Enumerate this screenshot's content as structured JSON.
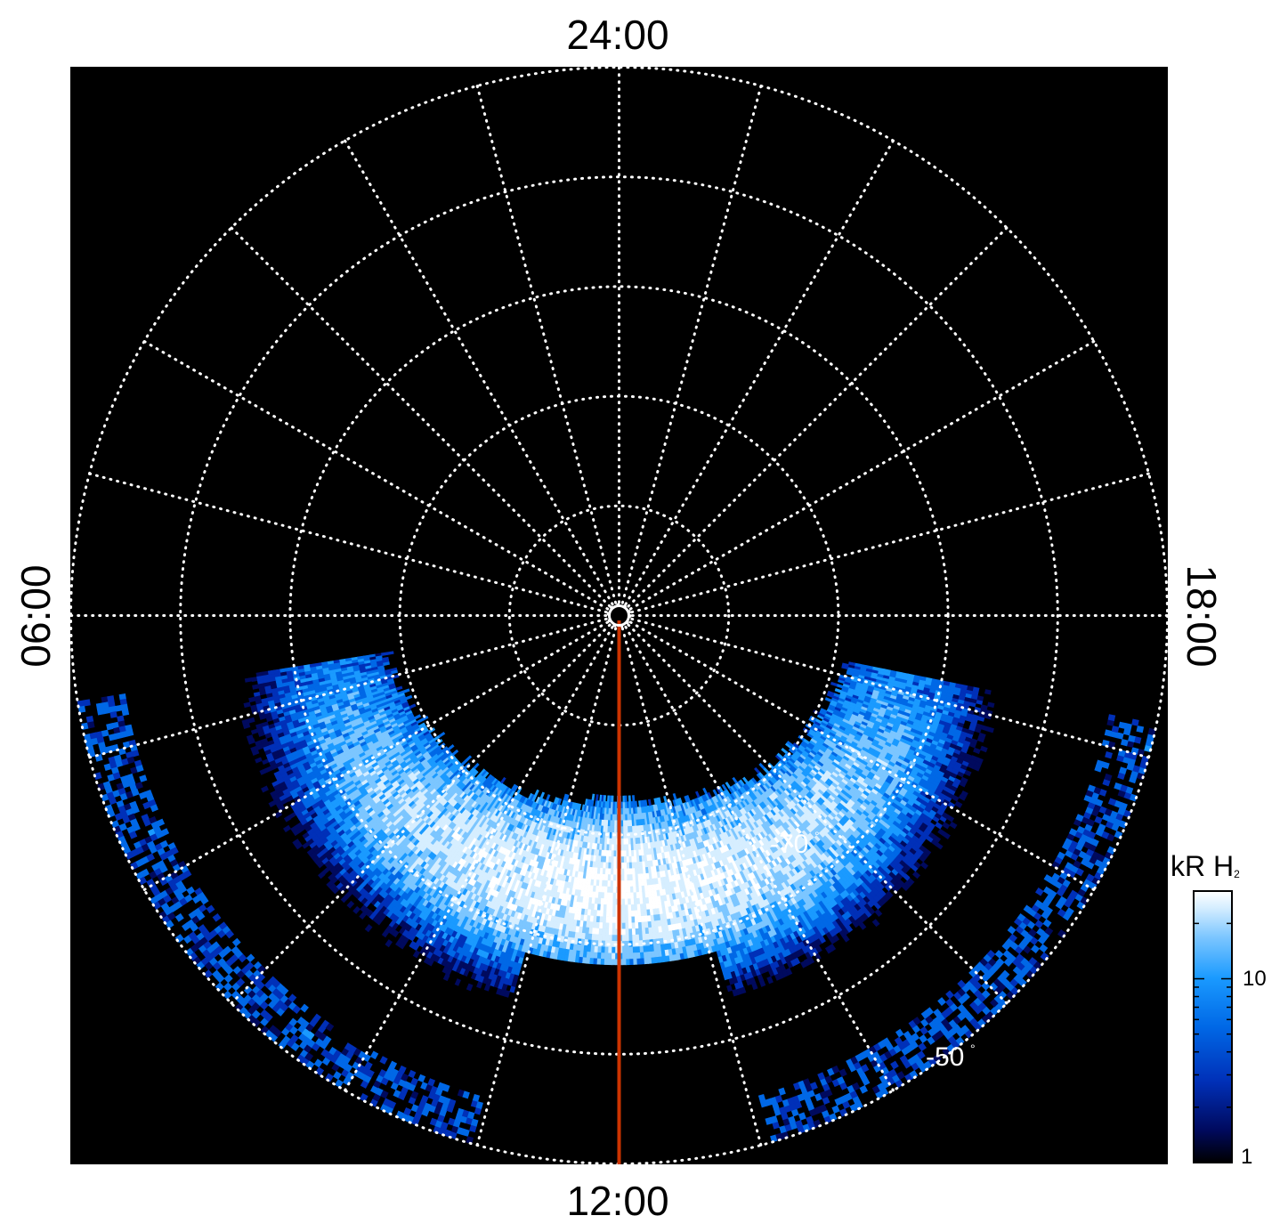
{
  "chart_data": {
    "type": "heatmap",
    "projection": "polar",
    "hemisphere": "south",
    "title": "",
    "local_time_labels": {
      "top": "24:00",
      "bottom": "12:00",
      "left": "06:00",
      "right": "18:00"
    },
    "latitude_labels": [
      {
        "text": "-70",
        "latitude": -70
      },
      {
        "text": "-50",
        "latitude": -50
      }
    ],
    "latitude_circles": [
      -50,
      -60,
      -70,
      -80,
      -89
    ],
    "outer_latitude": -40,
    "meridian_step_hours": 1,
    "grid": true,
    "highlighted_meridian": {
      "local_time_hours": 12,
      "color": "#cc3300"
    },
    "emission": {
      "description_values": "auroral oval band on dayside",
      "local_time_start_hours": 6.6,
      "local_time_end_hours": 17.2,
      "peak_latitude_noon": -65,
      "peak_value": 30
    },
    "colorbar": {
      "title": "kR H",
      "title_subscript": "2",
      "scale": "log",
      "range": [
        1,
        30
      ],
      "ticks": [
        {
          "value": 10,
          "label": "10"
        },
        {
          "value": 1,
          "label": "1"
        }
      ],
      "colors": [
        "#000000",
        "#000a5e",
        "#0030b8",
        "#0068e6",
        "#1a9aff",
        "#7cc6ff",
        "#d6eeff",
        "#ffffff"
      ]
    }
  }
}
